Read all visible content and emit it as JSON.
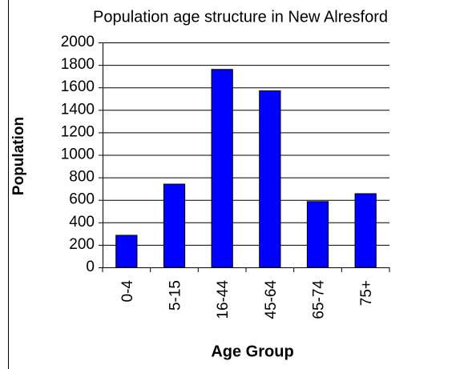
{
  "chart_data": {
    "type": "bar",
    "title": "Population age structure in New Alresford",
    "x_label": "Age Group",
    "y_label": "Population",
    "categories": [
      "0-4",
      "5-15",
      "16-44",
      "45-64",
      "65-74",
      "75+"
    ],
    "values": [
      285,
      740,
      1760,
      1570,
      585,
      655
    ],
    "color": "#0000ff",
    "ylim": [
      0,
      2000
    ],
    "yticks": [
      0,
      200,
      400,
      600,
      800,
      1000,
      1200,
      1400,
      1600,
      1800,
      2000
    ],
    "grid": true
  }
}
